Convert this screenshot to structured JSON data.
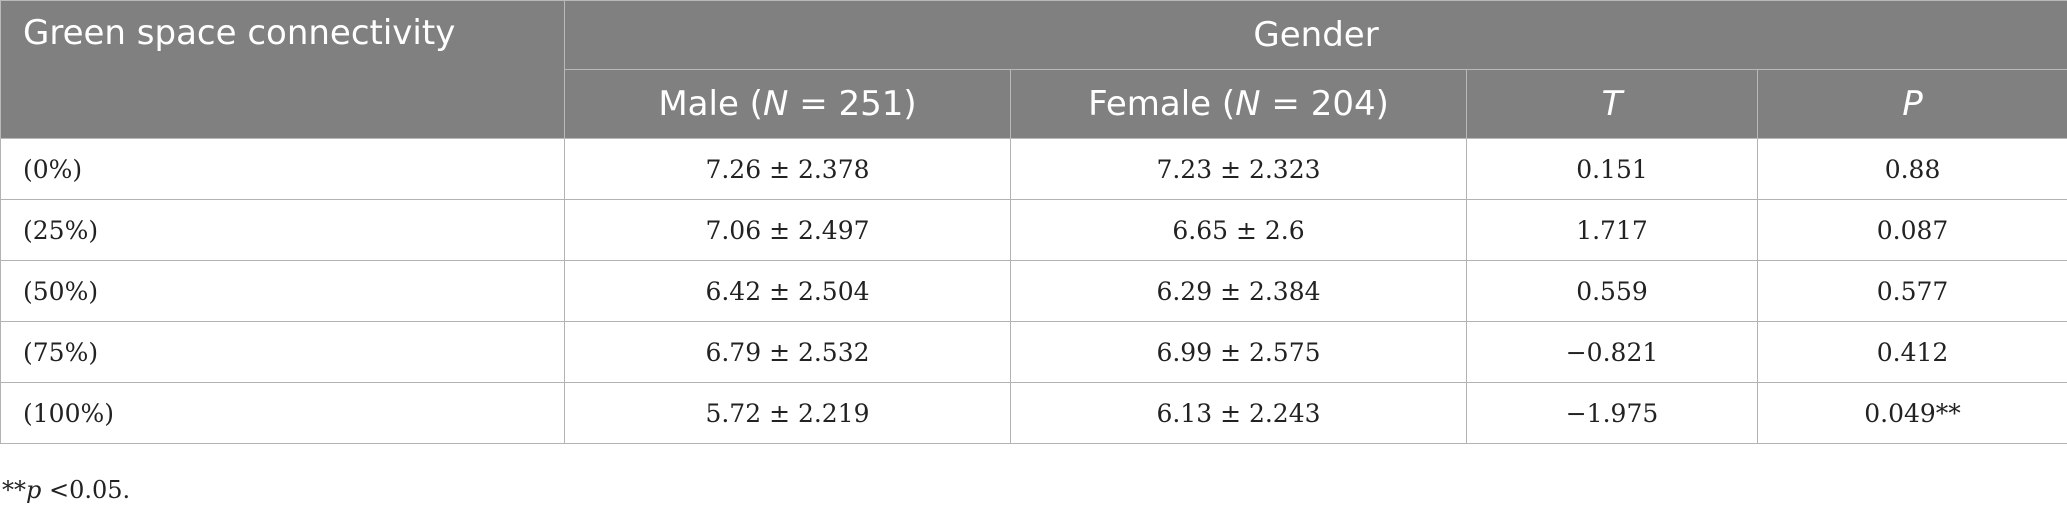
{
  "table": {
    "corner_header": "Green space connectivity",
    "group_header": "Gender",
    "subheaders": {
      "male": {
        "label": "Male (",
        "var": "N",
        "rest": " = 251)"
      },
      "female": {
        "label": "Female (",
        "var": "N",
        "rest": " = 204)"
      },
      "t": "T",
      "p": "P"
    },
    "rows": [
      {
        "label": "(0%)",
        "male": "7.26 ± 2.378",
        "female": "7.23 ± 2.323",
        "t": "0.151",
        "p": "0.88"
      },
      {
        "label": "(25%)",
        "male": "7.06 ± 2.497",
        "female": "6.65 ± 2.6",
        "t": "1.717",
        "p": "0.087"
      },
      {
        "label": "(50%)",
        "male": "6.42 ± 2.504",
        "female": "6.29 ± 2.384",
        "t": "0.559",
        "p": "0.577"
      },
      {
        "label": "(75%)",
        "male": "6.79 ± 2.532",
        "female": "6.99 ± 2.575",
        "t": "−0.821",
        "p": "0.412"
      },
      {
        "label": "(100%)",
        "male": "5.72 ± 2.219",
        "female": "6.13 ± 2.243",
        "t": "−1.975",
        "p": "0.049**"
      }
    ]
  },
  "footnote": {
    "stars": "**",
    "var": "p",
    "rest": " <0.05."
  }
}
